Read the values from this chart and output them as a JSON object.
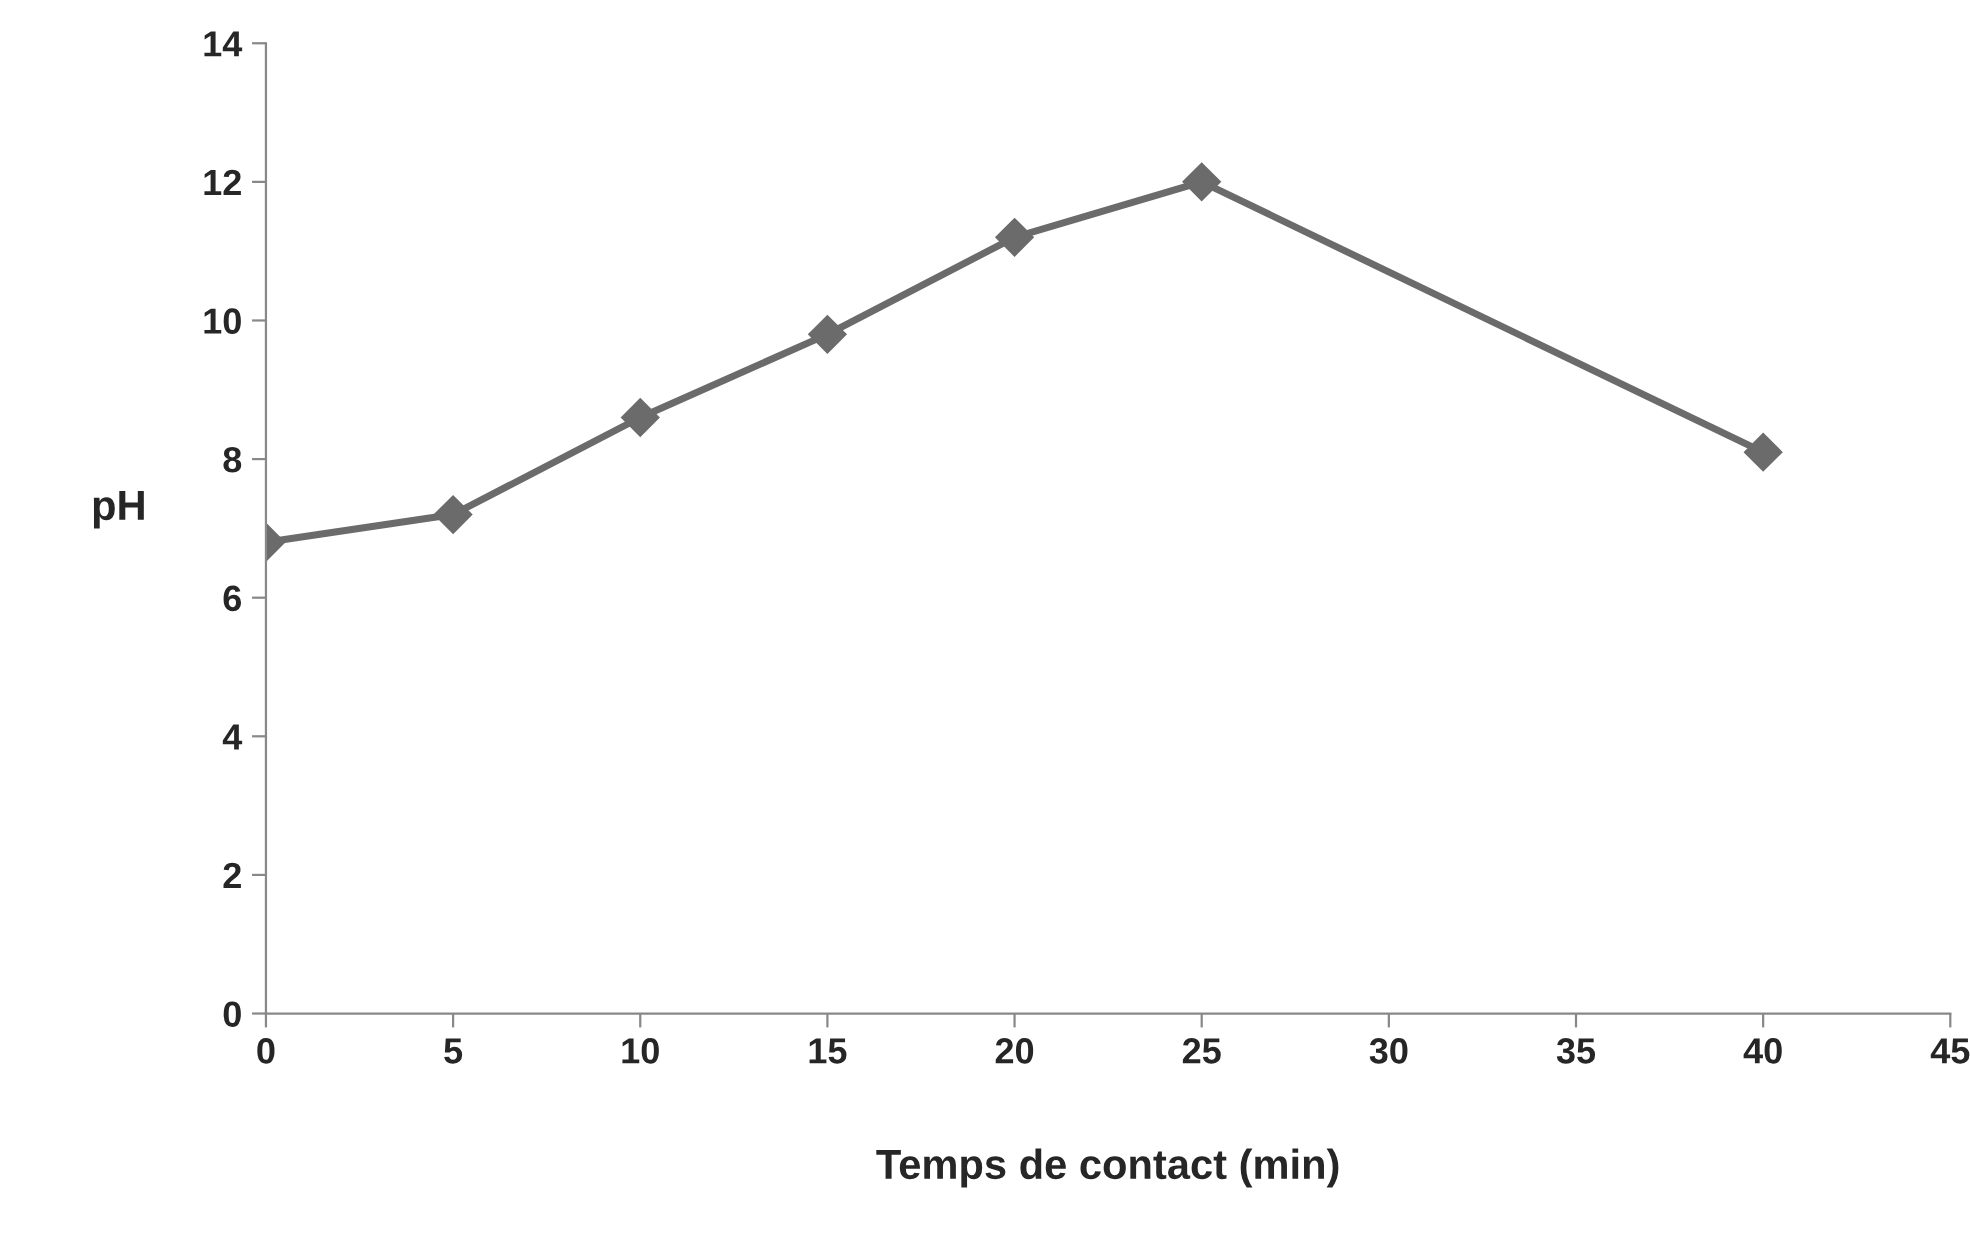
{
  "chart_data": {
    "type": "line",
    "xlabel": "Temps de contact (min)",
    "ylabel": "pH",
    "x": [
      0,
      5,
      10,
      15,
      20,
      25,
      40
    ],
    "series": [
      {
        "color": "#6b6b6b",
        "values": [
          6.8,
          7.2,
          8.6,
          9.8,
          11.2,
          12.0,
          8.1
        ]
      }
    ],
    "xlim": [
      0,
      45
    ],
    "xticks": [
      0,
      5,
      10,
      15,
      20,
      25,
      30,
      35,
      40,
      45
    ],
    "ylim": [
      0,
      14
    ],
    "yticks": [
      0,
      2,
      4,
      6,
      8,
      10,
      12,
      14
    ],
    "grid": false,
    "legend": false,
    "marker": "diamond",
    "line_style": "solid"
  }
}
